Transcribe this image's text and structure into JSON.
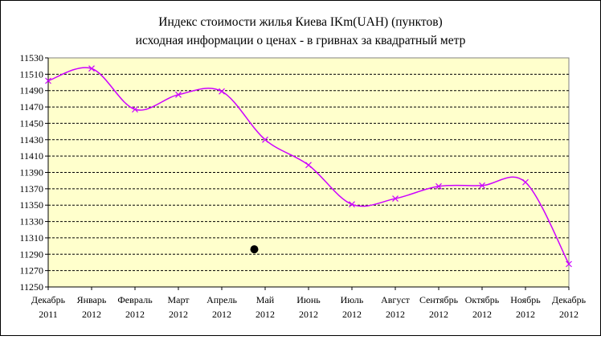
{
  "chart_data": {
    "type": "line",
    "title": "Индекс стоимости  жилья Киева   IKm(UAH)    (пунктов)",
    "subtitle": "исходная  информации о ценах - в гривнах за квадратный метр",
    "categories": [
      [
        "Декабрь",
        "2011"
      ],
      [
        "Январь",
        "2012"
      ],
      [
        "Февраль",
        "2012"
      ],
      [
        "Март",
        "2012"
      ],
      [
        "Апрель",
        "2012"
      ],
      [
        "Май",
        "2012"
      ],
      [
        "Июнь",
        "2012"
      ],
      [
        "Июль",
        "2012"
      ],
      [
        "Август",
        "2012"
      ],
      [
        "Сентябрь",
        "2012"
      ],
      [
        "Октябрь",
        "2012"
      ],
      [
        "Ноябрь",
        "2012"
      ],
      [
        "Декабрь",
        "2012"
      ]
    ],
    "values": [
      11502,
      11517,
      11467,
      11485,
      11489,
      11430,
      11399,
      11351,
      11358,
      11373,
      11374,
      11378,
      11278
    ],
    "ylim": [
      11250,
      11530
    ],
    "yticks": [
      "11530",
      "11510",
      "11490",
      "11470",
      "11450",
      "11430",
      "11410",
      "11390",
      "11370",
      "11350",
      "11330",
      "11310",
      "11290",
      "11270",
      "11250"
    ],
    "grid": true,
    "plot_background": "#ffffcc",
    "line_color": "#cc00ff",
    "marker": "x",
    "annotation": {
      "shape": "filled-circle",
      "color": "#000000",
      "x": 4.75,
      "y": 11296
    }
  }
}
